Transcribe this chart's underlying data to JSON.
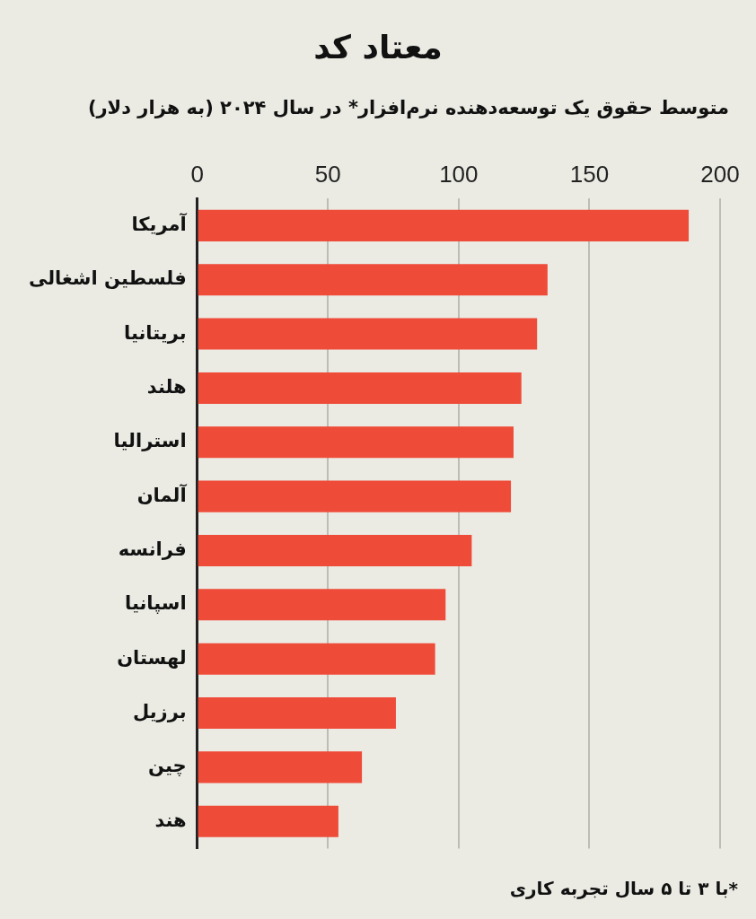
{
  "chart_data": {
    "type": "bar",
    "orientation": "horizontal",
    "title": "معتاد کد",
    "subtitle": "متوسط حقوق یک توسعه‌دهنده نرم‌افزار* در سال ۲۰۲۴ (به هزار دلار)",
    "categories": [
      "آمریکا",
      "فلسطین اشغالی",
      "بریتانیا",
      "هلند",
      "استرالیا",
      "آلمان",
      "فرانسه",
      "اسپانیا",
      "لهستان",
      "برزیل",
      "چین",
      "هند"
    ],
    "values": [
      188,
      134,
      130,
      124,
      121,
      120,
      105,
      95,
      91,
      76,
      63,
      54
    ],
    "color": "#ef4b39",
    "xlim": [
      0,
      200
    ],
    "xticks": [
      0,
      50,
      100,
      150,
      200
    ],
    "grid": "x",
    "legend": false,
    "annotations": [
      "*با ۳ تا ۵ سال تجربه کاری"
    ]
  }
}
